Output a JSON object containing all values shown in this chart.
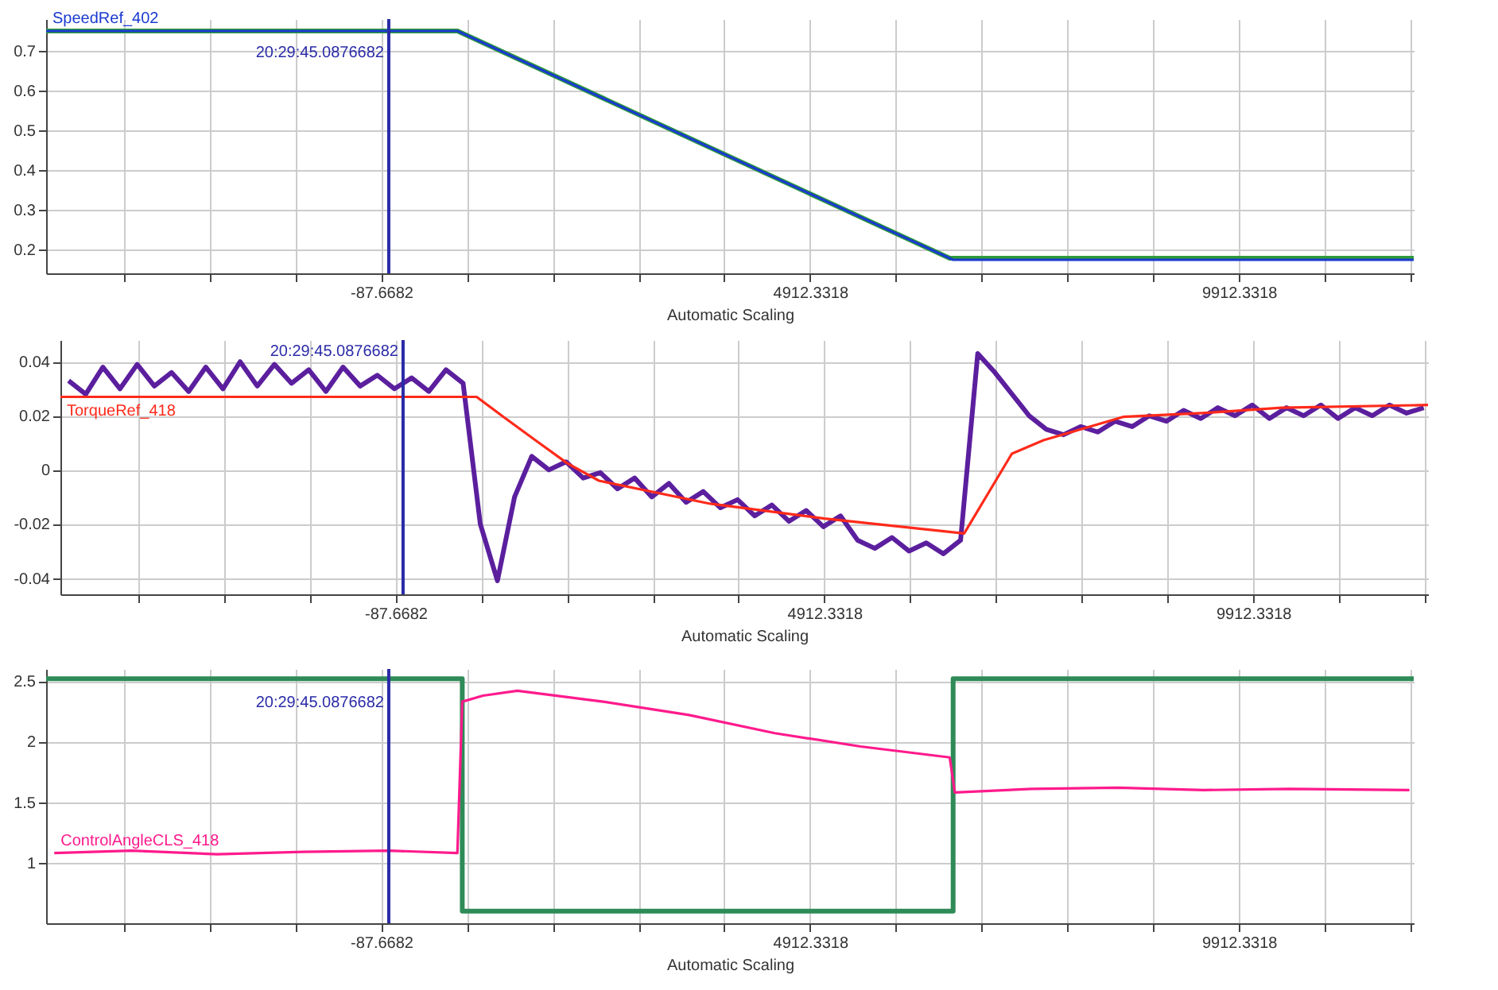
{
  "chart_data": [
    {
      "type": "line",
      "xlabel": "Automatic Scaling",
      "xlim": [
        -3995,
        11950
      ],
      "ylim": [
        0.14,
        0.78
      ],
      "grid": true,
      "xticks": [
        {
          "value": -3087.6682,
          "label": null
        },
        {
          "value": -2087.6682,
          "label": null
        },
        {
          "value": -1087.6682,
          "label": null
        },
        -87.6682,
        {
          "value": 912.3318,
          "label": null
        },
        {
          "value": 1912.3318,
          "label": null
        },
        {
          "value": 2912.3318,
          "label": null
        },
        {
          "value": 3912.3318,
          "label": null
        },
        4912.3318,
        {
          "value": 5912.3318,
          "label": null
        },
        {
          "value": 6912.3318,
          "label": null
        },
        {
          "value": 7912.3318,
          "label": null
        },
        {
          "value": 8912.3318,
          "label": null
        },
        9912.3318,
        {
          "value": 10912.3318,
          "label": null
        },
        {
          "value": 11912.3318,
          "label": null
        }
      ],
      "yticks": [
        0.2,
        0.3,
        0.4,
        0.5,
        0.6,
        0.7
      ],
      "ref_lines": [
        {
          "axis": "x",
          "value": 0,
          "color": "#2a2aa8"
        }
      ],
      "annotations": [
        "20:29:45.0876682"
      ],
      "series": [
        {
          "color": "#2e9a3a",
          "x": [
            -3995,
            801,
            6540,
            11950
          ],
          "values": [
            0.75,
            0.75,
            0.178,
            0.178
          ]
        },
        {
          "name": "SpeedRef_402",
          "color": "#1a3ad0",
          "x": [
            -3995,
            801,
            6580,
            11950
          ],
          "values": [
            0.75,
            0.75,
            0.174,
            0.174
          ]
        }
      ]
    },
    {
      "type": "line",
      "xlabel": "Automatic Scaling",
      "xlim": [
        -3995,
        11950
      ],
      "ylim": [
        -0.046,
        0.048
      ],
      "grid": true,
      "xticks": [
        {
          "value": -3087.6682,
          "label": null
        },
        {
          "value": -2087.6682,
          "label": null
        },
        {
          "value": -1087.6682,
          "label": null
        },
        -87.6682,
        {
          "value": 912.3318,
          "label": null
        },
        {
          "value": 1912.3318,
          "label": null
        },
        {
          "value": 2912.3318,
          "label": null
        },
        {
          "value": 3912.3318,
          "label": null
        },
        4912.3318,
        {
          "value": 5912.3318,
          "label": null
        },
        {
          "value": 6912.3318,
          "label": null
        },
        {
          "value": 7912.3318,
          "label": null
        },
        {
          "value": 8912.3318,
          "label": null
        },
        9912.3318,
        {
          "value": 10912.3318,
          "label": null
        },
        {
          "value": 11912.3318,
          "label": null
        }
      ],
      "yticks": [
        -0.04,
        -0.02,
        0,
        0.02,
        0.04
      ],
      "ref_lines": [
        {
          "axis": "x",
          "value": 0,
          "color": "#2a2aa8"
        }
      ],
      "annotations": [
        "20:29:45.0876682"
      ],
      "series": [
        {
          "color": "#5b1f9e",
          "x": [
            -3900,
            -3700,
            -3500,
            -3300,
            -3100,
            -2900,
            -2700,
            -2500,
            -2300,
            -2100,
            -1900,
            -1700,
            -1500,
            -1300,
            -1100,
            -900,
            -700,
            -500,
            -300,
            -100,
            100,
            300,
            500,
            700,
            900,
            1100,
            1300,
            1500,
            1700,
            1900,
            2100,
            2300,
            2500,
            2700,
            2900,
            3100,
            3300,
            3500,
            3700,
            3900,
            4100,
            4300,
            4500,
            4700,
            4900,
            5100,
            5300,
            5500,
            5700,
            5900,
            6100,
            6300,
            6500,
            6700,
            6900,
            7100,
            7300,
            7500,
            7700,
            7900,
            8100,
            8300,
            8500,
            8700,
            8900,
            9100,
            9300,
            9500,
            9700,
            9900,
            10100,
            10300,
            10500,
            10700,
            10900,
            11100,
            11300,
            11500,
            11700,
            11900
          ],
          "values": [
            0.033,
            0.028,
            0.038,
            0.03,
            0.039,
            0.031,
            0.036,
            0.029,
            0.038,
            0.03,
            0.04,
            0.031,
            0.039,
            0.032,
            0.037,
            0.029,
            0.038,
            0.031,
            0.035,
            0.03,
            0.034,
            0.029,
            0.037,
            0.032,
            -0.02,
            -0.041,
            -0.01,
            0.005,
            0.0,
            0.003,
            -0.003,
            -0.001,
            -0.007,
            -0.003,
            -0.01,
            -0.005,
            -0.012,
            -0.008,
            -0.014,
            -0.011,
            -0.017,
            -0.013,
            -0.019,
            -0.015,
            -0.021,
            -0.017,
            -0.026,
            -0.029,
            -0.025,
            -0.03,
            -0.027,
            -0.031,
            -0.026,
            0.043,
            0.036,
            0.028,
            0.02,
            0.015,
            0.013,
            0.016,
            0.014,
            0.018,
            0.016,
            0.02,
            0.018,
            0.022,
            0.019,
            0.023,
            0.02,
            0.024,
            0.019,
            0.023,
            0.02,
            0.024,
            0.019,
            0.023,
            0.02,
            0.024,
            0.021,
            0.023
          ]
        },
        {
          "name": "TorqueRef_418",
          "color": "#ff2a1a",
          "x": [
            -3995,
            857,
            1171,
            1542,
            1912,
            2283,
            3579,
            4912,
            6542,
            7098,
            7468,
            8394,
            9320,
            10246,
            11950
          ],
          "values": [
            0.027,
            0.027,
            0.0196,
            0.011,
            0.0025,
            -0.004,
            -0.0125,
            -0.018,
            -0.0235,
            0.006,
            0.011,
            0.0196,
            0.021,
            0.023,
            0.024
          ]
        }
      ]
    },
    {
      "type": "line",
      "xlabel": "Automatic Scaling",
      "xlim": [
        -3995,
        11950
      ],
      "ylim": [
        0.5,
        2.6
      ],
      "grid": true,
      "xticks": [
        {
          "value": -3087.6682,
          "label": null
        },
        {
          "value": -2087.6682,
          "label": null
        },
        {
          "value": -1087.6682,
          "label": null
        },
        -87.6682,
        {
          "value": 912.3318,
          "label": null
        },
        {
          "value": 1912.3318,
          "label": null
        },
        {
          "value": 2912.3318,
          "label": null
        },
        {
          "value": 3912.3318,
          "label": null
        },
        4912.3318,
        {
          "value": 5912.3318,
          "label": null
        },
        {
          "value": 6912.3318,
          "label": null
        },
        {
          "value": 7912.3318,
          "label": null
        },
        {
          "value": 8912.3318,
          "label": null
        },
        9912.3318,
        {
          "value": 10912.3318,
          "label": null
        },
        {
          "value": 11912.3318,
          "label": null
        }
      ],
      "yticks": [
        1,
        1.5,
        2,
        2.5
      ],
      "ref_lines": [
        {
          "axis": "x",
          "value": 0,
          "color": "#2a2aa8"
        }
      ],
      "annotations": [
        "20:29:45.0876682"
      ],
      "series": [
        {
          "type": "step",
          "color": "#2e8b57",
          "x": [
            -3995,
            857,
            6580,
            11950
          ],
          "values": [
            2.52,
            0.6,
            2.52,
            2.52
          ]
        },
        {
          "name": "ControlAngleCLS_418",
          "color": "#ff1a8c",
          "x": [
            -3900,
            -3000,
            -2000,
            -1000,
            0,
            800,
            857,
            1100,
            1500,
            2500,
            3500,
            4500,
            5500,
            6540,
            6600,
            7500,
            8500,
            9500,
            10500,
            11900
          ],
          "values": [
            1.08,
            1.1,
            1.07,
            1.09,
            1.1,
            1.08,
            2.33,
            2.38,
            2.42,
            2.33,
            2.22,
            2.07,
            1.96,
            1.87,
            1.58,
            1.61,
            1.62,
            1.6,
            1.61,
            1.6
          ]
        }
      ]
    }
  ]
}
